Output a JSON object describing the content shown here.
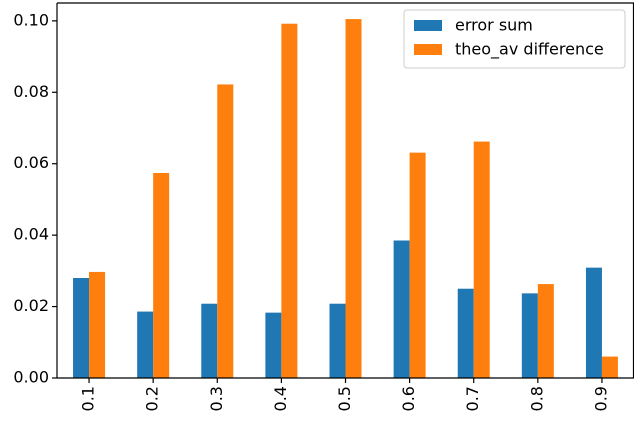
{
  "chart_data": {
    "type": "bar",
    "title": "",
    "xlabel": "",
    "ylabel": "",
    "categories": [
      "0.1",
      "0.2",
      "0.3",
      "0.4",
      "0.5",
      "0.6",
      "0.7",
      "0.8",
      "0.9"
    ],
    "series": [
      {
        "name": "error sum",
        "color": "#1f77b4",
        "values": [
          0.028,
          0.0186,
          0.0208,
          0.0183,
          0.0208,
          0.0385,
          0.025,
          0.0237,
          0.0309
        ]
      },
      {
        "name": "theo_av difference",
        "color": "#ff7f0e",
        "values": [
          0.0297,
          0.0574,
          0.0822,
          0.0992,
          0.1005,
          0.0631,
          0.0662,
          0.0263,
          0.006
        ]
      }
    ],
    "ylim": [
      0,
      0.105
    ],
    "yticks": [
      0.0,
      0.02,
      0.04,
      0.06,
      0.08,
      0.1
    ],
    "ytick_labels": [
      "0.00",
      "0.02",
      "0.04",
      "0.06",
      "0.08",
      "0.10"
    ],
    "xtick_rotation": "vertical",
    "grid": false,
    "legend_position": "top-right"
  }
}
